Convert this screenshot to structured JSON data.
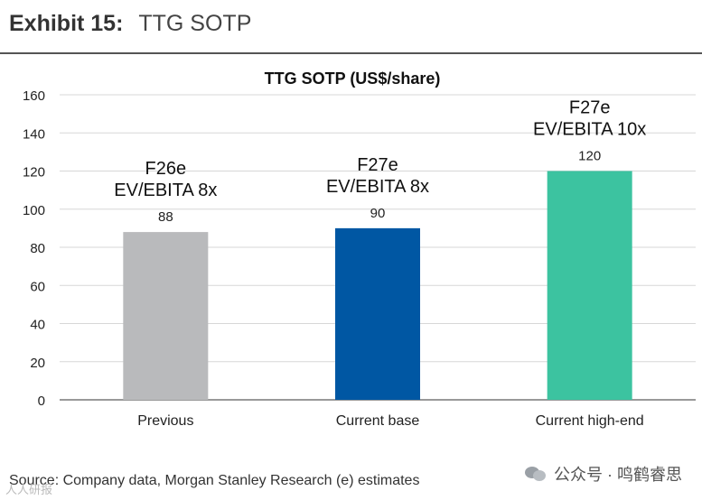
{
  "exhibit": {
    "label": "Exhibit 15:",
    "title": "TTG SOTP"
  },
  "chart_data": {
    "type": "bar",
    "title": "TTG SOTP (US$/share)",
    "categories": [
      "Previous",
      "Current base",
      "Current high-end"
    ],
    "values": [
      88,
      90,
      120
    ],
    "data_labels": [
      "88",
      "90",
      "120"
    ],
    "annotations": [
      [
        "F26e",
        "EV/EBITA 8x"
      ],
      [
        "F27e",
        "EV/EBITA 8x"
      ],
      [
        "F27e",
        "EV/EBITA 10x"
      ]
    ],
    "colors": [
      "#b9babc",
      "#0057a3",
      "#3cc3a0"
    ],
    "ylim": [
      0,
      160
    ],
    "yticks": [
      0,
      20,
      40,
      60,
      80,
      100,
      120,
      140,
      160
    ],
    "xlabel": "",
    "ylabel": "",
    "grid": true
  },
  "footer": {
    "source": "Source: Company data, Morgan Stanley Research (e) estimates"
  },
  "brand": {
    "text": "公众号 · 鸣鹤睿思",
    "icon": "wechat-icon"
  },
  "watermark": {
    "text": "人人研报"
  }
}
